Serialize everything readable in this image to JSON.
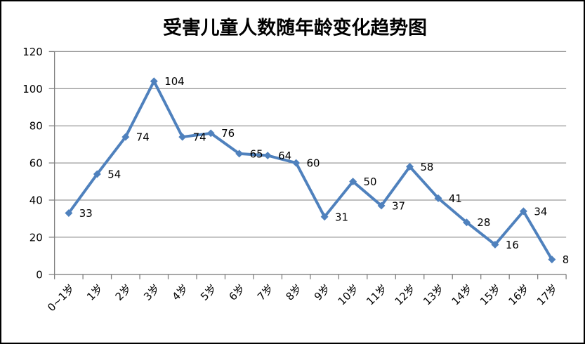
{
  "chart_data": {
    "type": "line",
    "title": "受害儿童人数随年龄变化趋势图",
    "categories": [
      "0~1岁",
      "1岁",
      "2岁",
      "3岁",
      "4岁",
      "5岁",
      "6岁",
      "7岁",
      "8岁",
      "9岁",
      "10岁",
      "11岁",
      "12岁",
      "13岁",
      "14岁",
      "15岁",
      "16岁",
      "17岁"
    ],
    "values": [
      33,
      54,
      74,
      104,
      74,
      76,
      65,
      64,
      60,
      31,
      50,
      37,
      58,
      41,
      28,
      16,
      34,
      8
    ],
    "data_labels_visible": true,
    "y_tick_labels": [
      "0",
      "20",
      "40",
      "60",
      "80",
      "100",
      "120"
    ],
    "ylim": [
      0,
      120
    ],
    "y_tick_step": 20,
    "xlabel": "",
    "ylabel": "",
    "grid": "horizontal",
    "legend": "none",
    "marker_style": "diamond",
    "colors": {
      "line": "#4F81BD",
      "marker": "#4F81BD",
      "gridline": "#999999",
      "axis": "#808080",
      "tick": "#808080",
      "text": "#000000",
      "background": "#FFFFFF",
      "frame_border": "#000000"
    }
  }
}
